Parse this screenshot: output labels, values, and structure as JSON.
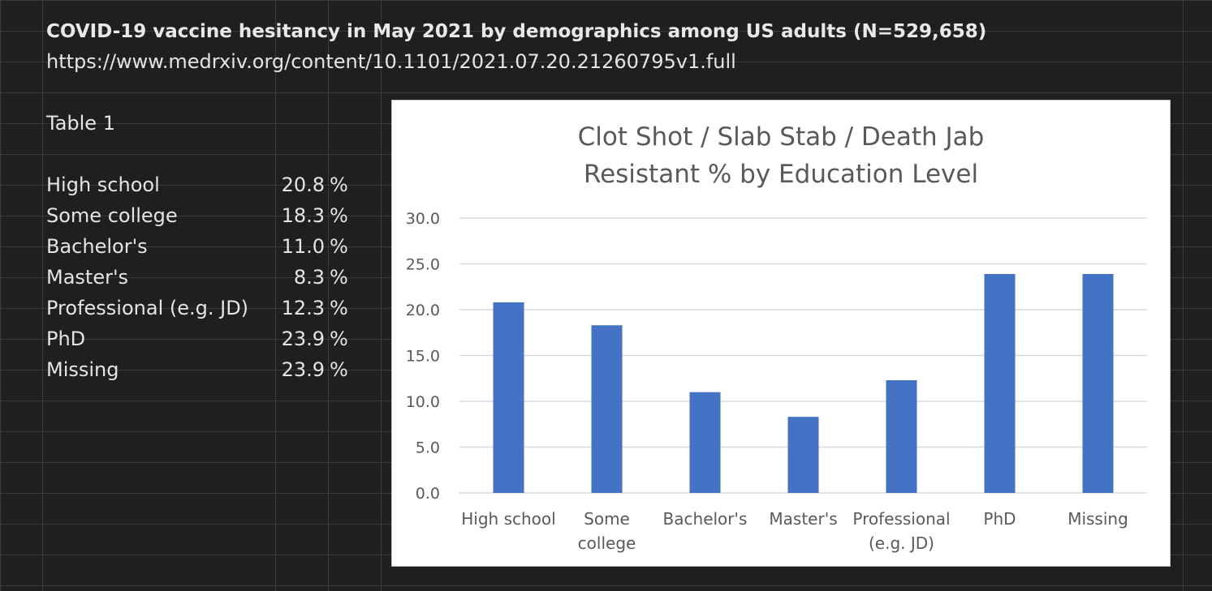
{
  "sheet": {
    "title": "COVID-19 vaccine hesitancy in May 2021 by demographics among US adults (N=529,658)",
    "link": "https://www.medrxiv.org/content/10.1101/2021.07.20.21260795v1.full",
    "table_label": "Table 1",
    "pct_symbol": "%",
    "rows": [
      {
        "label": "High school",
        "value": "20.8"
      },
      {
        "label": "Some college",
        "value": "18.3"
      },
      {
        "label": "Bachelor's",
        "value": "11.0"
      },
      {
        "label": "Master's",
        "value": "8.3"
      },
      {
        "label": "Professional (e.g. JD)",
        "value": "12.3"
      },
      {
        "label": "PhD",
        "value": "23.9"
      },
      {
        "label": "Missing",
        "value": "23.9"
      }
    ]
  },
  "chart_data": {
    "type": "bar",
    "title": "Clot Shot / Slab Stab / Death Jab",
    "subtitle": "Resistant % by Education Level",
    "categories": [
      [
        "High school"
      ],
      [
        "Some",
        "college"
      ],
      [
        "Bachelor's"
      ],
      [
        "Master's"
      ],
      [
        "Professional",
        "(e.g. JD)"
      ],
      [
        "PhD"
      ],
      [
        "Missing"
      ]
    ],
    "values": [
      20.8,
      18.3,
      11.0,
      8.3,
      12.3,
      23.9,
      23.9
    ],
    "ylim": [
      0,
      30
    ],
    "yticks": [
      "0.0",
      "5.0",
      "10.0",
      "15.0",
      "20.0",
      "25.0",
      "30.0"
    ],
    "grid": true,
    "bar_color": "#4472c4"
  }
}
